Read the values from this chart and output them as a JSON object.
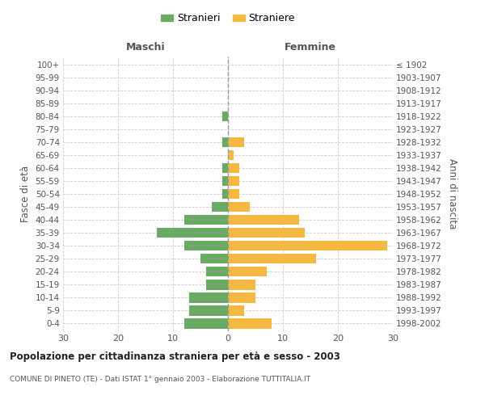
{
  "age_groups": [
    "0-4",
    "5-9",
    "10-14",
    "15-19",
    "20-24",
    "25-29",
    "30-34",
    "35-39",
    "40-44",
    "45-49",
    "50-54",
    "55-59",
    "60-64",
    "65-69",
    "70-74",
    "75-79",
    "80-84",
    "85-89",
    "90-94",
    "95-99",
    "100+"
  ],
  "birth_years": [
    "1998-2002",
    "1993-1997",
    "1988-1992",
    "1983-1987",
    "1978-1982",
    "1973-1977",
    "1968-1972",
    "1963-1967",
    "1958-1962",
    "1953-1957",
    "1948-1952",
    "1943-1947",
    "1938-1942",
    "1933-1937",
    "1928-1932",
    "1923-1927",
    "1918-1922",
    "1913-1917",
    "1908-1912",
    "1903-1907",
    "≤ 1902"
  ],
  "males": [
    8,
    7,
    7,
    4,
    4,
    5,
    8,
    13,
    8,
    3,
    1,
    1,
    1,
    0,
    1,
    0,
    1,
    0,
    0,
    0,
    0
  ],
  "females": [
    8,
    3,
    5,
    5,
    7,
    16,
    29,
    14,
    13,
    4,
    2,
    2,
    2,
    1,
    3,
    0,
    0,
    0,
    0,
    0,
    0
  ],
  "male_color": "#6aaa64",
  "female_color": "#f5b942",
  "background_color": "#ffffff",
  "grid_color": "#cccccc",
  "title": "Popolazione per cittadinanza straniera per età e sesso - 2003",
  "subtitle": "COMUNE DI PINETO (TE) - Dati ISTAT 1° gennaio 2003 - Elaborazione TUTTITALIA.IT",
  "xlabel_left": "Maschi",
  "xlabel_right": "Femmine",
  "ylabel_left": "Fasce di età",
  "ylabel_right": "Anni di nascita",
  "legend_male": "Stranieri",
  "legend_female": "Straniere",
  "xlim": 30
}
